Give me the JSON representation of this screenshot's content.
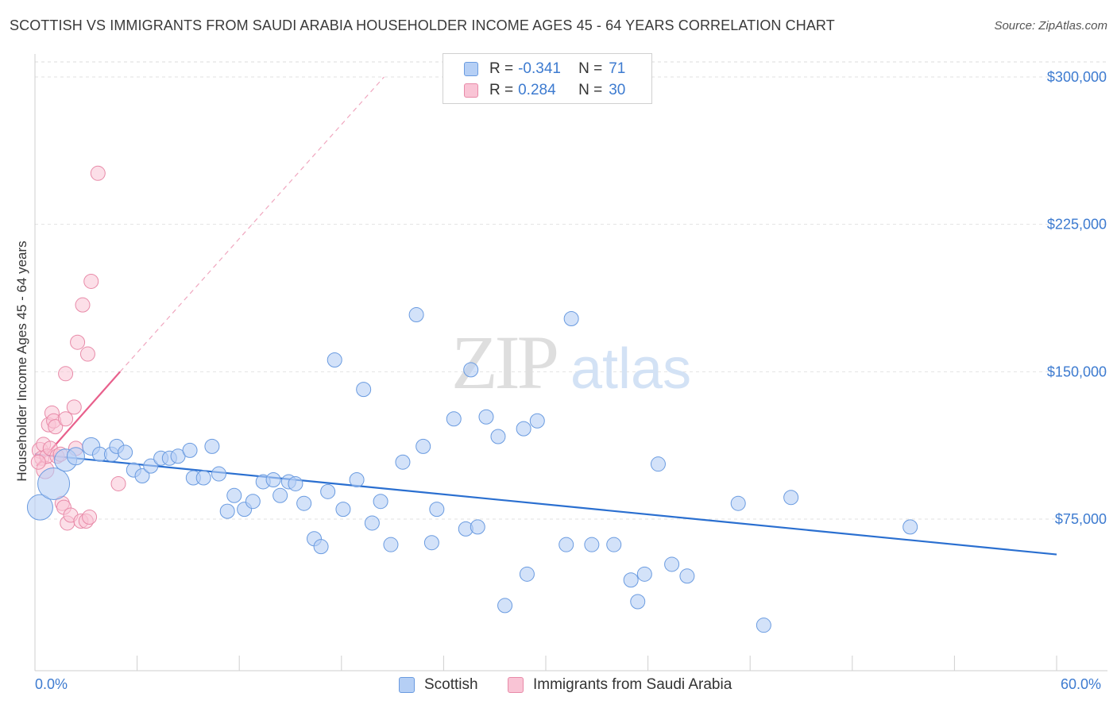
{
  "title": "SCOTTISH VS IMMIGRANTS FROM SAUDI ARABIA HOUSEHOLDER INCOME AGES 45 - 64 YEARS CORRELATION CHART",
  "source": "Source: ZipAtlas.com",
  "watermark": {
    "zip": "ZIP",
    "atlas": "atlas"
  },
  "legend_top": {
    "rows": [
      {
        "r_label": "R =",
        "r_value": "-0.341",
        "n_label": "N =",
        "n_value": "71"
      },
      {
        "r_label": "R =",
        "r_value": "0.284",
        "n_label": "N =",
        "n_value": "30"
      }
    ]
  },
  "legend_bottom": {
    "series1": "Scottish",
    "series2": "Immigrants from Saudi Arabia"
  },
  "colors": {
    "blue_fill": "#b5cff5",
    "blue_stroke": "#6a9be0",
    "blue_line": "#2a6fd0",
    "pink_fill": "#f9c4d5",
    "pink_stroke": "#e88aa8",
    "pink_line": "#e8608c",
    "tick_text": "#3d7bd0"
  },
  "chart_data": {
    "type": "scatter",
    "title": "SCOTTISH VS IMMIGRANTS FROM SAUDI ARABIA HOUSEHOLDER INCOME AGES 45 - 64 YEARS CORRELATION CHART",
    "xlabel": "",
    "ylabel": "Householder Income Ages 45 - 64 years",
    "xlim": [
      0,
      60
    ],
    "ylim": [
      5000,
      308000
    ],
    "x_tick_labels": [
      "0.0%",
      "60.0%"
    ],
    "y_ticks": [
      75000,
      150000,
      225000,
      300000
    ],
    "y_tick_labels": [
      "$75,000",
      "$150,000",
      "$225,000",
      "$300,000"
    ],
    "grid": true,
    "legend_position": "top-center",
    "series": [
      {
        "name": "Scottish",
        "r": -0.341,
        "n": 71,
        "trend": {
          "x": [
            0,
            60
          ],
          "y": [
            108000,
            57000
          ],
          "style": "solid"
        },
        "points": [
          {
            "x": 0.3,
            "y": 81000,
            "s": 16
          },
          {
            "x": 1.1,
            "y": 93000,
            "s": 20
          },
          {
            "x": 1.8,
            "y": 105000,
            "s": 14
          },
          {
            "x": 2.4,
            "y": 107000,
            "s": 11
          },
          {
            "x": 3.3,
            "y": 112000,
            "s": 11
          },
          {
            "x": 3.8,
            "y": 108000,
            "s": 9
          },
          {
            "x": 4.5,
            "y": 108000,
            "s": 9
          },
          {
            "x": 4.8,
            "y": 112000,
            "s": 9
          },
          {
            "x": 5.3,
            "y": 109000,
            "s": 9
          },
          {
            "x": 5.8,
            "y": 100000,
            "s": 9
          },
          {
            "x": 6.3,
            "y": 97000,
            "s": 9
          },
          {
            "x": 6.8,
            "y": 102000,
            "s": 9
          },
          {
            "x": 7.4,
            "y": 106000,
            "s": 9
          },
          {
            "x": 7.9,
            "y": 106000,
            "s": 9
          },
          {
            "x": 8.4,
            "y": 107000,
            "s": 9
          },
          {
            "x": 9.1,
            "y": 110000,
            "s": 9
          },
          {
            "x": 9.3,
            "y": 96000,
            "s": 9
          },
          {
            "x": 9.9,
            "y": 96000,
            "s": 9
          },
          {
            "x": 10.4,
            "y": 112000,
            "s": 9
          },
          {
            "x": 10.8,
            "y": 98000,
            "s": 9
          },
          {
            "x": 11.3,
            "y": 79000,
            "s": 9
          },
          {
            "x": 11.7,
            "y": 87000,
            "s": 9
          },
          {
            "x": 12.3,
            "y": 80000,
            "s": 9
          },
          {
            "x": 12.8,
            "y": 84000,
            "s": 9
          },
          {
            "x": 13.4,
            "y": 94000,
            "s": 9
          },
          {
            "x": 14.0,
            "y": 95000,
            "s": 9
          },
          {
            "x": 14.4,
            "y": 87000,
            "s": 9
          },
          {
            "x": 14.9,
            "y": 94000,
            "s": 9
          },
          {
            "x": 15.3,
            "y": 93000,
            "s": 9
          },
          {
            "x": 15.8,
            "y": 83000,
            "s": 9
          },
          {
            "x": 16.4,
            "y": 65000,
            "s": 9
          },
          {
            "x": 16.8,
            "y": 61000,
            "s": 9
          },
          {
            "x": 17.2,
            "y": 89000,
            "s": 9
          },
          {
            "x": 17.6,
            "y": 156000,
            "s": 9
          },
          {
            "x": 18.1,
            "y": 80000,
            "s": 9
          },
          {
            "x": 18.9,
            "y": 95000,
            "s": 9
          },
          {
            "x": 19.3,
            "y": 141000,
            "s": 9
          },
          {
            "x": 19.8,
            "y": 73000,
            "s": 9
          },
          {
            "x": 20.3,
            "y": 84000,
            "s": 9
          },
          {
            "x": 20.9,
            "y": 62000,
            "s": 9
          },
          {
            "x": 21.6,
            "y": 104000,
            "s": 9
          },
          {
            "x": 22.4,
            "y": 179000,
            "s": 9
          },
          {
            "x": 22.8,
            "y": 112000,
            "s": 9
          },
          {
            "x": 23.3,
            "y": 63000,
            "s": 9
          },
          {
            "x": 23.6,
            "y": 80000,
            "s": 9
          },
          {
            "x": 24.6,
            "y": 126000,
            "s": 9
          },
          {
            "x": 25.3,
            "y": 70000,
            "s": 9
          },
          {
            "x": 25.6,
            "y": 151000,
            "s": 9
          },
          {
            "x": 26.0,
            "y": 71000,
            "s": 9
          },
          {
            "x": 26.5,
            "y": 127000,
            "s": 9
          },
          {
            "x": 27.2,
            "y": 117000,
            "s": 9
          },
          {
            "x": 27.6,
            "y": 31000,
            "s": 9
          },
          {
            "x": 28.7,
            "y": 121000,
            "s": 9
          },
          {
            "x": 28.9,
            "y": 47000,
            "s": 9
          },
          {
            "x": 29.5,
            "y": 125000,
            "s": 9
          },
          {
            "x": 31.2,
            "y": 62000,
            "s": 9
          },
          {
            "x": 31.5,
            "y": 177000,
            "s": 9
          },
          {
            "x": 32.7,
            "y": 62000,
            "s": 9
          },
          {
            "x": 34.0,
            "y": 62000,
            "s": 9
          },
          {
            "x": 35.0,
            "y": 44000,
            "s": 9
          },
          {
            "x": 35.4,
            "y": 33000,
            "s": 9
          },
          {
            "x": 35.8,
            "y": 47000,
            "s": 9
          },
          {
            "x": 36.6,
            "y": 103000,
            "s": 9
          },
          {
            "x": 37.4,
            "y": 52000,
            "s": 9
          },
          {
            "x": 38.3,
            "y": 46000,
            "s": 9
          },
          {
            "x": 41.3,
            "y": 83000,
            "s": 9
          },
          {
            "x": 42.8,
            "y": 21000,
            "s": 9
          },
          {
            "x": 44.4,
            "y": 86000,
            "s": 9
          },
          {
            "x": 51.4,
            "y": 71000,
            "s": 9
          }
        ]
      },
      {
        "name": "Immigrants from Saudi Arabia",
        "r": 0.284,
        "n": 30,
        "trend": {
          "x": [
            0.1,
            5.0
          ],
          "y": [
            102000,
            150000
          ],
          "style": "solid",
          "extended_x": [
            5.0,
            20.5
          ],
          "extended_y": [
            150000,
            300000
          ],
          "extended_style": "dashed"
        },
        "points": [
          {
            "x": 0.3,
            "y": 110000,
            "s": 10
          },
          {
            "x": 0.4,
            "y": 106000,
            "s": 9
          },
          {
            "x": 0.5,
            "y": 113000,
            "s": 9
          },
          {
            "x": 0.6,
            "y": 100000,
            "s": 11
          },
          {
            "x": 0.7,
            "y": 107000,
            "s": 9
          },
          {
            "x": 0.8,
            "y": 123000,
            "s": 9
          },
          {
            "x": 0.9,
            "y": 111000,
            "s": 9
          },
          {
            "x": 1.0,
            "y": 129000,
            "s": 9
          },
          {
            "x": 1.1,
            "y": 125000,
            "s": 9
          },
          {
            "x": 1.2,
            "y": 122000,
            "s": 9
          },
          {
            "x": 1.3,
            "y": 107000,
            "s": 9
          },
          {
            "x": 1.5,
            "y": 108000,
            "s": 9
          },
          {
            "x": 1.6,
            "y": 83000,
            "s": 9
          },
          {
            "x": 1.7,
            "y": 81000,
            "s": 9
          },
          {
            "x": 1.8,
            "y": 126000,
            "s": 9
          },
          {
            "x": 1.8,
            "y": 149000,
            "s": 9
          },
          {
            "x": 1.9,
            "y": 73000,
            "s": 9
          },
          {
            "x": 2.1,
            "y": 77000,
            "s": 9
          },
          {
            "x": 2.3,
            "y": 132000,
            "s": 9
          },
          {
            "x": 2.4,
            "y": 111000,
            "s": 9
          },
          {
            "x": 2.5,
            "y": 165000,
            "s": 9
          },
          {
            "x": 2.7,
            "y": 74000,
            "s": 9
          },
          {
            "x": 2.8,
            "y": 184000,
            "s": 9
          },
          {
            "x": 3.0,
            "y": 74000,
            "s": 9
          },
          {
            "x": 3.1,
            "y": 159000,
            "s": 9
          },
          {
            "x": 3.2,
            "y": 76000,
            "s": 9
          },
          {
            "x": 3.3,
            "y": 196000,
            "s": 9
          },
          {
            "x": 3.7,
            "y": 251000,
            "s": 9
          },
          {
            "x": 4.9,
            "y": 93000,
            "s": 9
          },
          {
            "x": 0.2,
            "y": 104000,
            "s": 9
          }
        ]
      }
    ]
  }
}
